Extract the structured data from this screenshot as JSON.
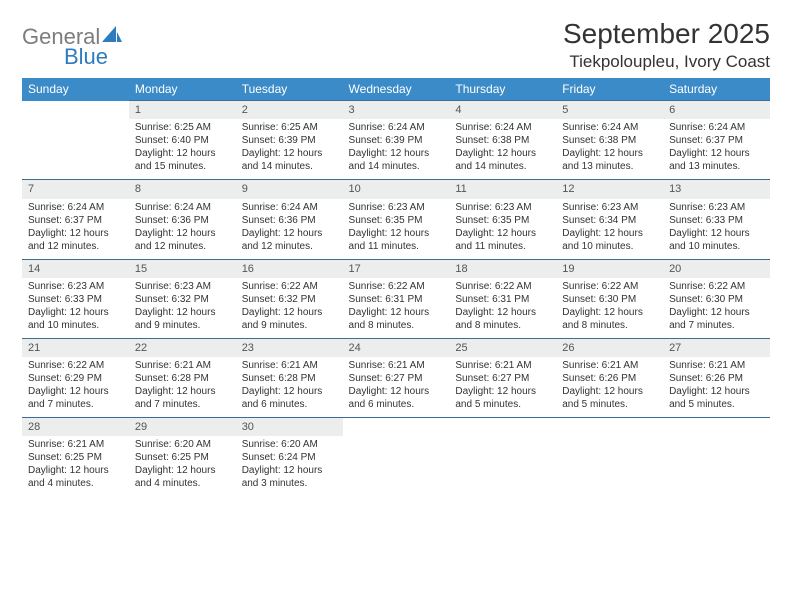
{
  "logo": {
    "text_gray": "General",
    "text_blue": "Blue",
    "sail_color": "#2f7bbf"
  },
  "header": {
    "title": "September 2025",
    "location": "Tiekpoloupleu, Ivory Coast"
  },
  "colors": {
    "header_bg": "#3b8bc9",
    "header_text": "#ffffff",
    "daynum_bg": "#eceded",
    "cell_border": "#3b6d9a",
    "text": "#333333"
  },
  "days_of_week": [
    "Sunday",
    "Monday",
    "Tuesday",
    "Wednesday",
    "Thursday",
    "Friday",
    "Saturday"
  ],
  "weeks": [
    {
      "nums": [
        "",
        "1",
        "2",
        "3",
        "4",
        "5",
        "6"
      ],
      "cells": [
        null,
        {
          "sunrise": "Sunrise: 6:25 AM",
          "sunset": "Sunset: 6:40 PM",
          "day1": "Daylight: 12 hours",
          "day2": "and 15 minutes."
        },
        {
          "sunrise": "Sunrise: 6:25 AM",
          "sunset": "Sunset: 6:39 PM",
          "day1": "Daylight: 12 hours",
          "day2": "and 14 minutes."
        },
        {
          "sunrise": "Sunrise: 6:24 AM",
          "sunset": "Sunset: 6:39 PM",
          "day1": "Daylight: 12 hours",
          "day2": "and 14 minutes."
        },
        {
          "sunrise": "Sunrise: 6:24 AM",
          "sunset": "Sunset: 6:38 PM",
          "day1": "Daylight: 12 hours",
          "day2": "and 14 minutes."
        },
        {
          "sunrise": "Sunrise: 6:24 AM",
          "sunset": "Sunset: 6:38 PM",
          "day1": "Daylight: 12 hours",
          "day2": "and 13 minutes."
        },
        {
          "sunrise": "Sunrise: 6:24 AM",
          "sunset": "Sunset: 6:37 PM",
          "day1": "Daylight: 12 hours",
          "day2": "and 13 minutes."
        }
      ]
    },
    {
      "nums": [
        "7",
        "8",
        "9",
        "10",
        "11",
        "12",
        "13"
      ],
      "cells": [
        {
          "sunrise": "Sunrise: 6:24 AM",
          "sunset": "Sunset: 6:37 PM",
          "day1": "Daylight: 12 hours",
          "day2": "and 12 minutes."
        },
        {
          "sunrise": "Sunrise: 6:24 AM",
          "sunset": "Sunset: 6:36 PM",
          "day1": "Daylight: 12 hours",
          "day2": "and 12 minutes."
        },
        {
          "sunrise": "Sunrise: 6:24 AM",
          "sunset": "Sunset: 6:36 PM",
          "day1": "Daylight: 12 hours",
          "day2": "and 12 minutes."
        },
        {
          "sunrise": "Sunrise: 6:23 AM",
          "sunset": "Sunset: 6:35 PM",
          "day1": "Daylight: 12 hours",
          "day2": "and 11 minutes."
        },
        {
          "sunrise": "Sunrise: 6:23 AM",
          "sunset": "Sunset: 6:35 PM",
          "day1": "Daylight: 12 hours",
          "day2": "and 11 minutes."
        },
        {
          "sunrise": "Sunrise: 6:23 AM",
          "sunset": "Sunset: 6:34 PM",
          "day1": "Daylight: 12 hours",
          "day2": "and 10 minutes."
        },
        {
          "sunrise": "Sunrise: 6:23 AM",
          "sunset": "Sunset: 6:33 PM",
          "day1": "Daylight: 12 hours",
          "day2": "and 10 minutes."
        }
      ]
    },
    {
      "nums": [
        "14",
        "15",
        "16",
        "17",
        "18",
        "19",
        "20"
      ],
      "cells": [
        {
          "sunrise": "Sunrise: 6:23 AM",
          "sunset": "Sunset: 6:33 PM",
          "day1": "Daylight: 12 hours",
          "day2": "and 10 minutes."
        },
        {
          "sunrise": "Sunrise: 6:23 AM",
          "sunset": "Sunset: 6:32 PM",
          "day1": "Daylight: 12 hours",
          "day2": "and 9 minutes."
        },
        {
          "sunrise": "Sunrise: 6:22 AM",
          "sunset": "Sunset: 6:32 PM",
          "day1": "Daylight: 12 hours",
          "day2": "and 9 minutes."
        },
        {
          "sunrise": "Sunrise: 6:22 AM",
          "sunset": "Sunset: 6:31 PM",
          "day1": "Daylight: 12 hours",
          "day2": "and 8 minutes."
        },
        {
          "sunrise": "Sunrise: 6:22 AM",
          "sunset": "Sunset: 6:31 PM",
          "day1": "Daylight: 12 hours",
          "day2": "and 8 minutes."
        },
        {
          "sunrise": "Sunrise: 6:22 AM",
          "sunset": "Sunset: 6:30 PM",
          "day1": "Daylight: 12 hours",
          "day2": "and 8 minutes."
        },
        {
          "sunrise": "Sunrise: 6:22 AM",
          "sunset": "Sunset: 6:30 PM",
          "day1": "Daylight: 12 hours",
          "day2": "and 7 minutes."
        }
      ]
    },
    {
      "nums": [
        "21",
        "22",
        "23",
        "24",
        "25",
        "26",
        "27"
      ],
      "cells": [
        {
          "sunrise": "Sunrise: 6:22 AM",
          "sunset": "Sunset: 6:29 PM",
          "day1": "Daylight: 12 hours",
          "day2": "and 7 minutes."
        },
        {
          "sunrise": "Sunrise: 6:21 AM",
          "sunset": "Sunset: 6:28 PM",
          "day1": "Daylight: 12 hours",
          "day2": "and 7 minutes."
        },
        {
          "sunrise": "Sunrise: 6:21 AM",
          "sunset": "Sunset: 6:28 PM",
          "day1": "Daylight: 12 hours",
          "day2": "and 6 minutes."
        },
        {
          "sunrise": "Sunrise: 6:21 AM",
          "sunset": "Sunset: 6:27 PM",
          "day1": "Daylight: 12 hours",
          "day2": "and 6 minutes."
        },
        {
          "sunrise": "Sunrise: 6:21 AM",
          "sunset": "Sunset: 6:27 PM",
          "day1": "Daylight: 12 hours",
          "day2": "and 5 minutes."
        },
        {
          "sunrise": "Sunrise: 6:21 AM",
          "sunset": "Sunset: 6:26 PM",
          "day1": "Daylight: 12 hours",
          "day2": "and 5 minutes."
        },
        {
          "sunrise": "Sunrise: 6:21 AM",
          "sunset": "Sunset: 6:26 PM",
          "day1": "Daylight: 12 hours",
          "day2": "and 5 minutes."
        }
      ]
    },
    {
      "nums": [
        "28",
        "29",
        "30",
        "",
        "",
        "",
        ""
      ],
      "cells": [
        {
          "sunrise": "Sunrise: 6:21 AM",
          "sunset": "Sunset: 6:25 PM",
          "day1": "Daylight: 12 hours",
          "day2": "and 4 minutes."
        },
        {
          "sunrise": "Sunrise: 6:20 AM",
          "sunset": "Sunset: 6:25 PM",
          "day1": "Daylight: 12 hours",
          "day2": "and 4 minutes."
        },
        {
          "sunrise": "Sunrise: 6:20 AM",
          "sunset": "Sunset: 6:24 PM",
          "day1": "Daylight: 12 hours",
          "day2": "and 3 minutes."
        },
        null,
        null,
        null,
        null
      ]
    }
  ]
}
